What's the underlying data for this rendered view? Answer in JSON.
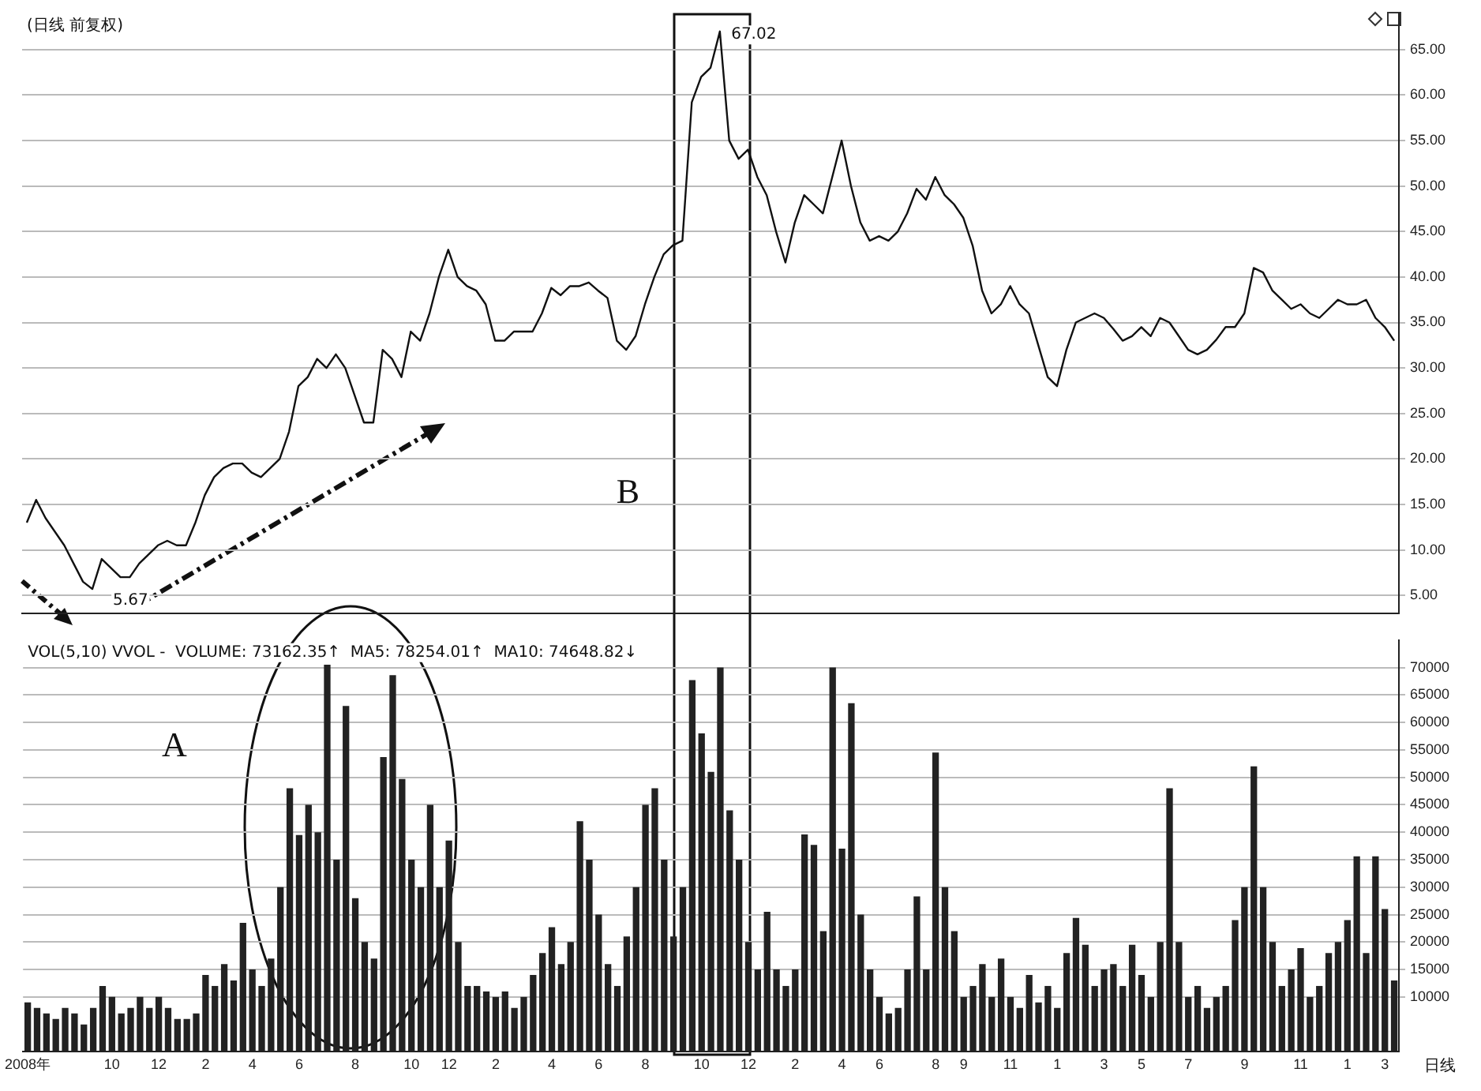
{
  "chart_data": [
    {
      "type": "line",
      "title": "(日线 前复权)",
      "categories": [
        null,
        null,
        null,
        null,
        null,
        null,
        null,
        null,
        null,
        null,
        null,
        null,
        null,
        null,
        null,
        null,
        null,
        null,
        null,
        null,
        null,
        null,
        null,
        null,
        null,
        null,
        null,
        null,
        null,
        null,
        null,
        null,
        null,
        null,
        null,
        null,
        null,
        null,
        null,
        null,
        null,
        null,
        null,
        null,
        null,
        null,
        null,
        null,
        null,
        null,
        null,
        null,
        null,
        null,
        null,
        null,
        null,
        null,
        null,
        null,
        null,
        null,
        null,
        null,
        null,
        null,
        null,
        null,
        null,
        null,
        null,
        null,
        null,
        null,
        null,
        null,
        null,
        null,
        null,
        null,
        null,
        null,
        null,
        null,
        null,
        null,
        null,
        null,
        null,
        null,
        null,
        null,
        null,
        null,
        null,
        null,
        null,
        null,
        null,
        null,
        null,
        null,
        null,
        null,
        null,
        null,
        null,
        null,
        null,
        null,
        null,
        null,
        null,
        null,
        null,
        null,
        null,
        null,
        null,
        null,
        null,
        null,
        null,
        null,
        null,
        null,
        null,
        null,
        null,
        null,
        null,
        null,
        null,
        null,
        null,
        null,
        null,
        null,
        null,
        null,
        null,
        null,
        null,
        null,
        null,
        null,
        null
      ],
      "series": [
        {
          "color": "#111111",
          "values": [
            13,
            15.5,
            13.5,
            12,
            10.5,
            8.5,
            6.5,
            5.7,
            9,
            8,
            7,
            7,
            8.5,
            9.5,
            10.5,
            11,
            10.5,
            10.5,
            13,
            16,
            18,
            19,
            19.5,
            19.5,
            18.5,
            18,
            19,
            20,
            23,
            28,
            29,
            31,
            30,
            31.5,
            30,
            27,
            24,
            24,
            32,
            31,
            29,
            34,
            33,
            36,
            40,
            43,
            40,
            39,
            38.5,
            37,
            33,
            33,
            34,
            34,
            34,
            36,
            38.8,
            38,
            39,
            39,
            39.4,
            38.5,
            37.7,
            33,
            32,
            33.5,
            37,
            40,
            42.5,
            43.5,
            44,
            59.2,
            62,
            63,
            67,
            55,
            53,
            54,
            51,
            49,
            45,
            41.6,
            46,
            49,
            48,
            47,
            51,
            55,
            50,
            46,
            44,
            44.5,
            44,
            45,
            47,
            49.7,
            48.5,
            51,
            49,
            48,
            46.5,
            43.4,
            38.5,
            36,
            37,
            39,
            37,
            36,
            32.5,
            29,
            28,
            32,
            35,
            35.5,
            36,
            35.5,
            34.3,
            33,
            33.5,
            34.5,
            33.5,
            35.5,
            35,
            33.5,
            32,
            31.5,
            32,
            33.1,
            34.5,
            34.5,
            36,
            41,
            40.5,
            38.5,
            37.5,
            36.5,
            37,
            36,
            35.5,
            36.5,
            37.5,
            37,
            37,
            37.5,
            35.5,
            34.5,
            33
          ]
        }
      ],
      "ylim": [
        3,
        69
      ],
      "yticks": [
        {
          "value": 5,
          "label": "5.00"
        },
        {
          "value": 10,
          "label": "10.00"
        },
        {
          "value": 15,
          "label": "15.00"
        },
        {
          "value": 20,
          "label": "20.00"
        },
        {
          "value": 25,
          "label": "25.00"
        },
        {
          "value": 30,
          "label": "30.00"
        },
        {
          "value": 35,
          "label": "35.00"
        },
        {
          "value": 40,
          "label": "40.00"
        },
        {
          "value": 45,
          "label": "45.00"
        },
        {
          "value": 50,
          "label": "50.00"
        },
        {
          "value": 55,
          "label": "55.00"
        },
        {
          "value": 60,
          "label": "60.00"
        },
        {
          "value": 65,
          "label": "65.00"
        }
      ],
      "grid": "y",
      "legend": false,
      "marker": "none",
      "line_style": "solid",
      "tick_labels": "y",
      "annotations": [
        "67.02",
        "5.67",
        "B"
      ]
    },
    {
      "type": "bar",
      "title": "VOL(5,10) VVOL -  VOLUME: 73162.35↑  MA5: 78254.01↑  MA10: 74648.82↓",
      "categories": [
        "2008年",
        null,
        null,
        null,
        null,
        null,
        null,
        null,
        null,
        "10",
        null,
        null,
        null,
        null,
        "12",
        null,
        null,
        null,
        null,
        "2",
        null,
        null,
        null,
        null,
        "4",
        null,
        null,
        null,
        null,
        "6",
        null,
        null,
        null,
        null,
        null,
        "8",
        null,
        null,
        null,
        null,
        null,
        "10",
        null,
        null,
        null,
        "12",
        null,
        null,
        null,
        null,
        "2",
        null,
        null,
        null,
        null,
        null,
        "4",
        null,
        null,
        null,
        null,
        "6",
        null,
        null,
        null,
        null,
        "8",
        null,
        null,
        null,
        null,
        null,
        "10",
        null,
        null,
        null,
        null,
        "12",
        null,
        null,
        null,
        null,
        "2",
        null,
        null,
        null,
        null,
        "4",
        null,
        null,
        null,
        "6",
        null,
        null,
        null,
        null,
        null,
        "8",
        null,
        null,
        "9",
        null,
        null,
        null,
        null,
        "11",
        null,
        null,
        null,
        null,
        "1",
        null,
        null,
        null,
        null,
        "3",
        null,
        null,
        null,
        "5",
        null,
        null,
        null,
        null,
        "7",
        null,
        null,
        null,
        null,
        null,
        "9",
        null,
        null,
        null,
        null,
        null,
        "11",
        null,
        null,
        null,
        null,
        "1",
        null,
        null,
        null,
        "3",
        null
      ],
      "series": [
        {
          "color": "#222222",
          "values": [
            9000,
            8000,
            7000,
            6000,
            8000,
            7000,
            5000,
            8000,
            12000,
            10000,
            7000,
            8000,
            10000,
            8000,
            10000,
            8000,
            6000,
            6000,
            7000,
            14000,
            12000,
            16000,
            13000,
            23500,
            15000,
            12000,
            17000,
            30000,
            48000,
            39500,
            45000,
            40000,
            70500,
            35000,
            63000,
            28000,
            20000,
            17000,
            53700,
            68600,
            49700,
            35000,
            30000,
            45000,
            30000,
            38500,
            20000,
            12000,
            12000,
            11000,
            10000,
            11000,
            8000,
            10000,
            14000,
            18000,
            22700,
            16000,
            20000,
            42000,
            35000,
            25000,
            16000,
            12000,
            21000,
            30000,
            45000,
            48000,
            35000,
            21000,
            30000,
            67700,
            58000,
            51000,
            70000,
            44000,
            35000,
            20000,
            15000,
            25500,
            15000,
            12000,
            15000,
            39600,
            37700,
            22000,
            70000,
            37000,
            63500,
            25000,
            15000,
            10000,
            7000,
            8000,
            15000,
            28300,
            15000,
            54500,
            30000,
            22000,
            10000,
            12000,
            16000,
            10000,
            17000,
            10000,
            8000,
            14000,
            9000,
            12000,
            8000,
            18000,
            24400,
            19500,
            12000,
            15000,
            16000,
            12000,
            19500,
            14000,
            10000,
            20000,
            48000,
            20000,
            10000,
            12000,
            8000,
            10000,
            12000,
            24000,
            30000,
            52000,
            30000,
            20000,
            12000,
            15000,
            18900,
            10000,
            12000,
            18000,
            20000,
            24000,
            35600,
            18000,
            35600,
            26000,
            13000
          ]
        }
      ],
      "ylim": [
        0,
        75000
      ],
      "yticks": [
        10000,
        15000,
        20000,
        25000,
        30000,
        35000,
        40000,
        45000,
        50000,
        55000,
        60000,
        65000,
        70000
      ],
      "grid": "y",
      "legend": false,
      "annotations": [
        "A",
        "日线"
      ]
    }
  ]
}
